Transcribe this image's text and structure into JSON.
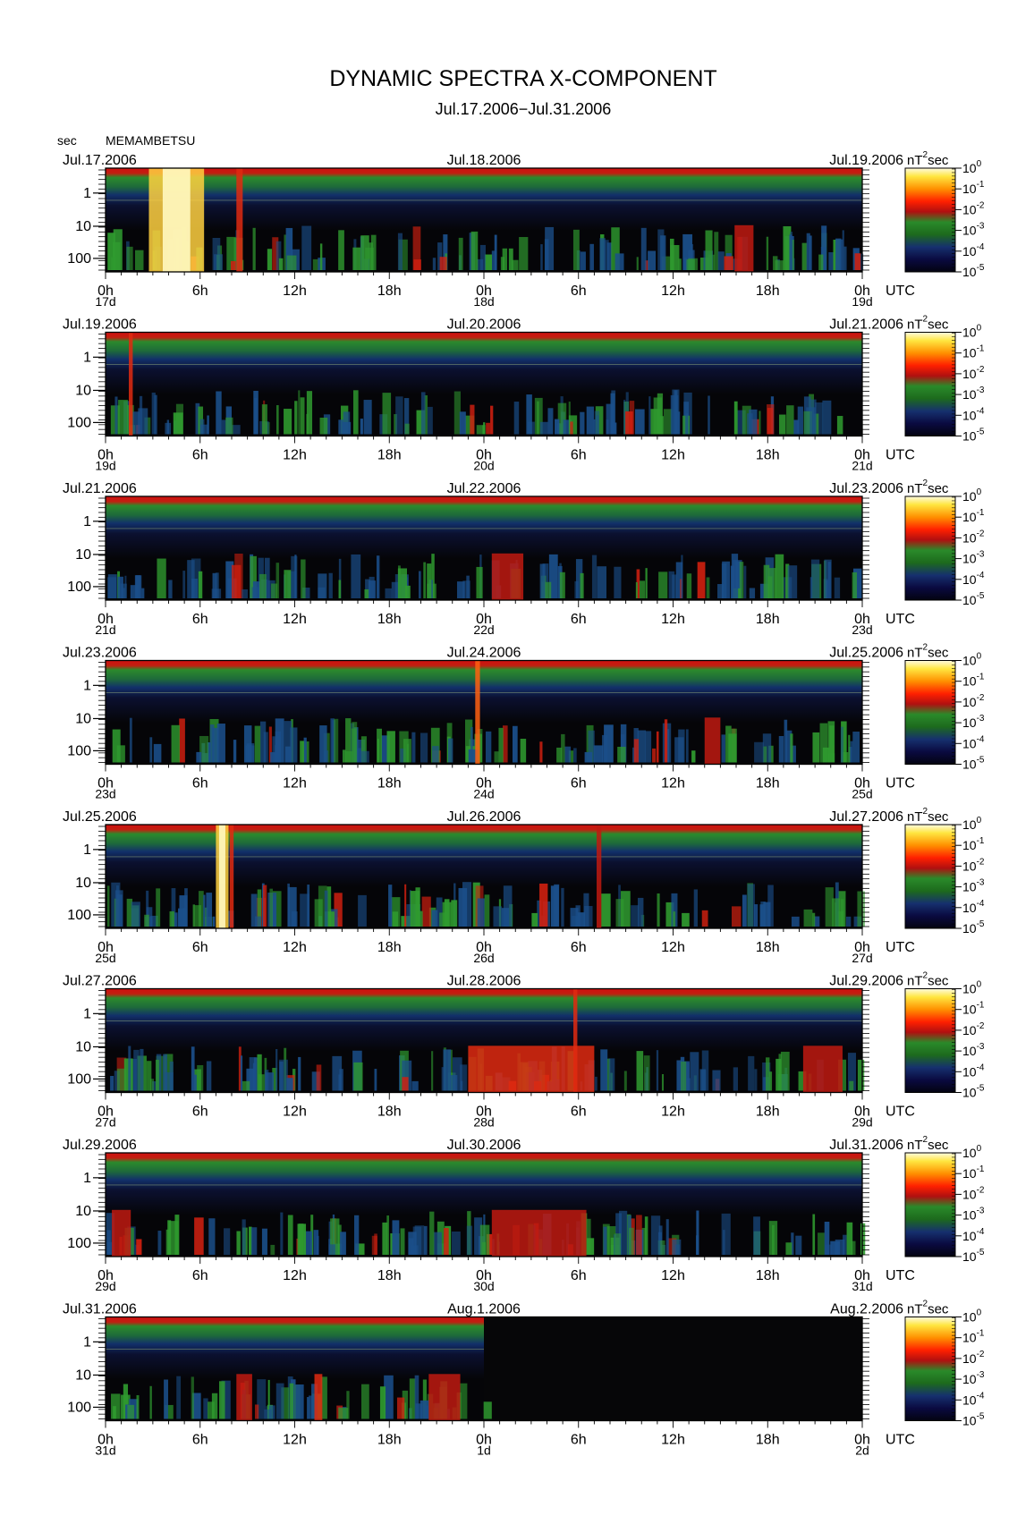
{
  "title": "DYNAMIC SPECTRA X-COMPONENT",
  "subtitle": "Jul.17.2006−Jul.31.2006",
  "station": "MEMAMBETSU",
  "y_unit_label": "sec",
  "x_unit_label": "UTC",
  "colorbar_unit_base": "nT",
  "colorbar_unit_sup": "2",
  "colorbar_unit_tail": "sec",
  "colors": {
    "background": "#000000",
    "scale": [
      "#0a0a3a",
      "#1a2a8a",
      "#1e7a1e",
      "#2fa02f",
      "#c01010",
      "#ff3000",
      "#ff9000",
      "#ffff80"
    ]
  },
  "chart_data": {
    "type": "heatmap",
    "y_axis": {
      "label": "sec",
      "ticks": [
        "1",
        "10",
        "100"
      ],
      "scale": "log",
      "inverted": true
    },
    "x_ticks": [
      "0h",
      "6h",
      "12h",
      "18h",
      "0h",
      "6h",
      "12h",
      "18h",
      "0h"
    ],
    "colorbar_ticks": [
      {
        "base": "10",
        "exp": "0"
      },
      {
        "base": "10",
        "exp": "-1"
      },
      {
        "base": "10",
        "exp": "-2"
      },
      {
        "base": "10",
        "exp": "-3"
      },
      {
        "base": "10",
        "exp": "-4"
      },
      {
        "base": "10",
        "exp": "-5"
      }
    ],
    "panels": [
      {
        "left_date": "Jul.17.2006",
        "mid_date": "Jul.18.2006",
        "right_date": "Jul.19.2006",
        "day_labels": [
          "17d",
          "18d",
          "19d"
        ],
        "events": [
          {
            "t": 4.5,
            "width": 3.5,
            "level": 0.97,
            "full": true
          },
          {
            "t": 8.5,
            "width": 0.4,
            "level": 0.75,
            "full": true
          },
          {
            "t": 40.5,
            "width": 1.2,
            "level": 0.6,
            "full": false
          }
        ]
      },
      {
        "left_date": "Jul.19.2006",
        "mid_date": "Jul.20.2006",
        "right_date": "Jul.21.2006",
        "day_labels": [
          "19d",
          "20d",
          "21d"
        ],
        "events": [
          {
            "t": 1.6,
            "width": 0.25,
            "level": 0.78,
            "full": true
          }
        ]
      },
      {
        "left_date": "Jul.21.2006",
        "mid_date": "Jul.22.2006",
        "right_date": "Jul.23.2006",
        "day_labels": [
          "21d",
          "22d",
          "23d"
        ],
        "events": [
          {
            "t": 25.5,
            "width": 2.0,
            "level": 0.6,
            "full": false
          }
        ]
      },
      {
        "left_date": "Jul.23.2006",
        "mid_date": "Jul.24.2006",
        "right_date": "Jul.25.2006",
        "day_labels": [
          "23d",
          "24d",
          "25d"
        ],
        "events": [
          {
            "t": 23.6,
            "width": 0.3,
            "level": 0.85,
            "full": true
          },
          {
            "t": 38.5,
            "width": 1.0,
            "level": 0.6,
            "full": false
          }
        ]
      },
      {
        "left_date": "Jul.25.2006",
        "mid_date": "Jul.26.2006",
        "right_date": "Jul.27.2006",
        "day_labels": [
          "25d",
          "26d",
          "27d"
        ],
        "events": [
          {
            "t": 7.4,
            "width": 0.8,
            "level": 1.0,
            "full": true
          },
          {
            "t": 8.0,
            "width": 0.25,
            "level": 0.8,
            "full": true
          },
          {
            "t": 31.3,
            "width": 0.3,
            "level": 0.6,
            "full": true
          }
        ]
      },
      {
        "left_date": "Jul.27.2006",
        "mid_date": "Jul.28.2006",
        "right_date": "Jul.29.2006",
        "day_labels": [
          "27d",
          "28d",
          "29d"
        ],
        "events": [
          {
            "t": 29.8,
            "width": 0.25,
            "level": 0.72,
            "full": true
          },
          {
            "t": 27.0,
            "width": 8.0,
            "level": 0.7,
            "full": false
          },
          {
            "t": 45.5,
            "width": 2.5,
            "level": 0.6,
            "full": false
          }
        ]
      },
      {
        "left_date": "Jul.29.2006",
        "mid_date": "Jul.30.2006",
        "right_date": "Jul.31.2006",
        "day_labels": [
          "29d",
          "30d",
          "31d"
        ],
        "events": [
          {
            "t": 27.5,
            "width": 6.0,
            "level": 0.65,
            "full": false
          },
          {
            "t": 1.0,
            "width": 1.2,
            "level": 0.58,
            "full": false
          }
        ]
      },
      {
        "left_date": "Jul.31.2006",
        "mid_date": "Aug.1.2006",
        "right_date": "Aug.2.2006",
        "day_labels": [
          "31d",
          "1d",
          "2d"
        ],
        "data_end_fraction": 0.5,
        "events": [
          {
            "t": 13.5,
            "width": 0.5,
            "level": 0.7,
            "full": false
          },
          {
            "t": 8.8,
            "width": 1.0,
            "level": 0.62,
            "full": false
          },
          {
            "t": 21.5,
            "width": 2.0,
            "level": 0.62,
            "full": false
          }
        ]
      }
    ]
  }
}
